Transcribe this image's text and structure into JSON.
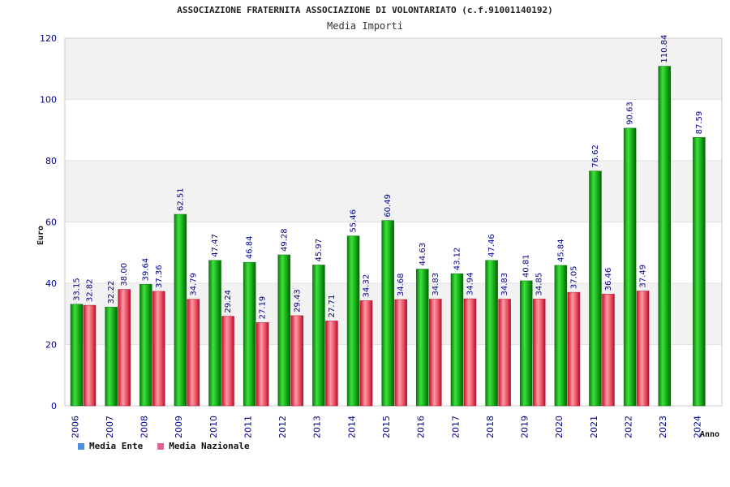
{
  "chart_data": {
    "type": "bar",
    "title": "ASSOCIAZIONE FRATERNITA ASSOCIAZIONE DI VOLONTARIATO (c.f.91001140192)",
    "subtitle": "Media Importi",
    "ylabel": "Euro",
    "xlabel": "Anno",
    "ylim": [
      0,
      120
    ],
    "yticks": [
      0,
      20,
      40,
      60,
      80,
      100,
      120
    ],
    "grid": true,
    "categories": [
      "2006",
      "2007",
      "2008",
      "2009",
      "2010",
      "2011",
      "2012",
      "2013",
      "2014",
      "2015",
      "2016",
      "2017",
      "2018",
      "2019",
      "2020",
      "2021",
      "2022",
      "2023",
      "2024"
    ],
    "series": [
      {
        "name": "Media Ente",
        "color": "#1faa1f",
        "values": [
          33.15,
          32.22,
          39.64,
          62.51,
          47.47,
          46.84,
          49.28,
          45.97,
          55.46,
          60.49,
          44.63,
          43.12,
          47.46,
          40.81,
          45.84,
          76.62,
          90.63,
          110.84,
          87.59
        ],
        "labels": [
          "33.15",
          "32.22",
          "39.64",
          "62.51",
          "47.47",
          "46.84",
          "49.28",
          "45.97",
          "55.46",
          "60.49",
          "44.63",
          "43.12",
          "47.46",
          "40.81",
          "45.84",
          "76.62",
          "90.63",
          "110.84",
          "87.59"
        ]
      },
      {
        "name": "Media Nazionale",
        "color": "#e0303c",
        "values": [
          32.82,
          38.0,
          37.36,
          34.79,
          29.24,
          27.19,
          29.43,
          27.71,
          34.32,
          34.68,
          34.83,
          34.94,
          34.83,
          34.85,
          37.05,
          36.46,
          37.49,
          null,
          null
        ],
        "labels": [
          "32.82",
          "38.00",
          "37.36",
          "34.79",
          "29.24",
          "27.19",
          "29.43",
          "27.71",
          "34.32",
          "34.68",
          "34.83",
          "34.94",
          "34.83",
          "34.85",
          "37.05",
          "36.46",
          "37.49",
          null,
          null
        ]
      }
    ],
    "legend": {
      "placement": "bottom-left",
      "items": [
        {
          "label": "Media Ente",
          "color": "#4a90e2"
        },
        {
          "label": "Media Nazionale",
          "color": "#e0609a"
        }
      ]
    }
  }
}
